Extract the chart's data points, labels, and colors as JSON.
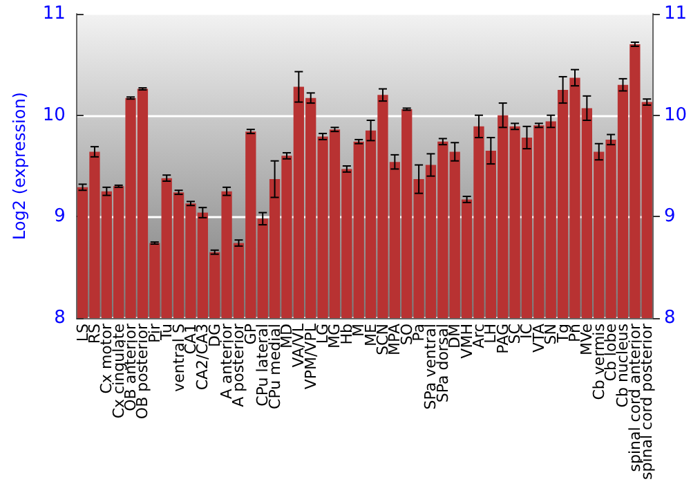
{
  "chart_data": {
    "type": "bar",
    "ylabel": "Log2 (expression)",
    "categories": [
      "LS",
      "RS",
      "Cx motor",
      "Cx cingulate",
      "OB anterior",
      "OB posterior",
      "Pir",
      "Tu",
      "ventral S",
      "CA1",
      "CA2/CA3",
      "DG",
      "A anterior",
      "A posterior",
      "GP",
      "CPu lateral",
      "CPu medial",
      "MD",
      "VA/VL",
      "VPM/VPL",
      "LG",
      "MG",
      "Hb",
      "M",
      "ME",
      "SCN",
      "MPA",
      "SO",
      "Pa",
      "SPa ventral",
      "SPa dorsal",
      "DM",
      "VMH",
      "Arc",
      "LH",
      "PAG",
      "SC",
      "IC",
      "VTA",
      "SN",
      "Tg",
      "Pn",
      "MVe",
      "Cb vermis",
      "Cb lobe",
      "Cb nucleus",
      "spinal cord anterior",
      "spinal cord posterior"
    ],
    "values": [
      9.29,
      9.64,
      9.25,
      9.3,
      10.17,
      10.26,
      8.74,
      9.38,
      9.24,
      9.13,
      9.04,
      8.65,
      9.25,
      8.74,
      9.84,
      8.98,
      9.37,
      9.6,
      10.28,
      10.17,
      9.79,
      9.86,
      9.47,
      9.74,
      9.85,
      10.2,
      9.54,
      10.06,
      9.37,
      9.51,
      9.74,
      9.64,
      9.17,
      9.89,
      9.65,
      10.0,
      9.89,
      9.78,
      9.9,
      9.94,
      10.25,
      10.37,
      10.07,
      9.64,
      9.76,
      10.3,
      10.7,
      10.13
    ],
    "errors": [
      0.03,
      0.05,
      0.04,
      0.01,
      0.01,
      0.01,
      0.01,
      0.03,
      0.02,
      0.02,
      0.05,
      0.02,
      0.04,
      0.03,
      0.02,
      0.06,
      0.18,
      0.03,
      0.15,
      0.05,
      0.03,
      0.02,
      0.03,
      0.02,
      0.1,
      0.06,
      0.07,
      0.01,
      0.14,
      0.11,
      0.03,
      0.09,
      0.03,
      0.11,
      0.13,
      0.12,
      0.03,
      0.11,
      0.02,
      0.06,
      0.13,
      0.08,
      0.12,
      0.08,
      0.05,
      0.06,
      0.02,
      0.03
    ],
    "color": "#b83232",
    "ylim": [
      8,
      11
    ],
    "yticks": [
      8,
      9,
      10,
      11
    ],
    "y2lim": [
      8,
      11
    ],
    "y2ticks": [
      8,
      9,
      10,
      11
    ],
    "grid": "y"
  }
}
